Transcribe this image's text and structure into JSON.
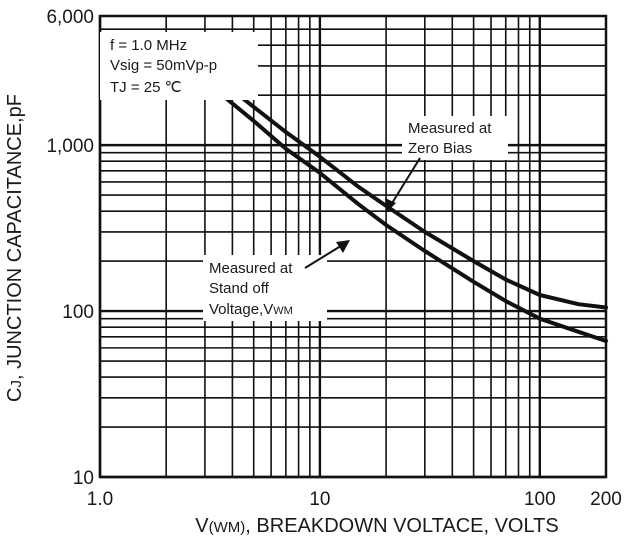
{
  "chart_data": {
    "type": "line",
    "xscale": "log",
    "yscale": "log",
    "xlim": [
      1,
      200
    ],
    "ylim": [
      10,
      6000
    ],
    "grid": true,
    "x_ticks": [
      1,
      10,
      100,
      200
    ],
    "x_tick_labels": [
      "1.0",
      "10",
      "100",
      "200"
    ],
    "y_ticks": [
      10,
      100,
      1000,
      6000
    ],
    "y_tick_labels": [
      "10",
      "100",
      "1,000",
      "6,000"
    ],
    "xlabel": {
      "main": "V",
      "sub": "(WM)",
      "rest": ", BREAKDOWN VOLTACE, VOLTS"
    },
    "ylabel": {
      "main": "C",
      "sub": "J",
      "rest": ", JUNCTION CAPACITANCE,pF"
    },
    "conditions": [
      "f = 1.0 MHz",
      "Vsig = 50mVp-p",
      "TJ = 25 ℃"
    ],
    "series": [
      {
        "name": "Measured at Zero Bias",
        "label_lines": [
          "Measured at",
          "Zero Bias"
        ],
        "x": [
          3.6,
          5,
          7,
          10,
          15,
          20,
          30,
          50,
          70,
          100,
          150,
          200
        ],
        "y": [
          2400,
          1700,
          1200,
          850,
          560,
          430,
          300,
          200,
          155,
          125,
          110,
          105
        ]
      },
      {
        "name": "Measured at Stand off Voltage,VWM",
        "label_lines": [
          "Measured at",
          "Stand off",
          "Voltage,V"
        ],
        "label_sub": "WM",
        "x": [
          3.6,
          5,
          7,
          10,
          15,
          20,
          30,
          50,
          70,
          100,
          150,
          200
        ],
        "y": [
          2000,
          1400,
          950,
          680,
          440,
          330,
          230,
          150,
          115,
          90,
          75,
          66
        ]
      }
    ]
  }
}
